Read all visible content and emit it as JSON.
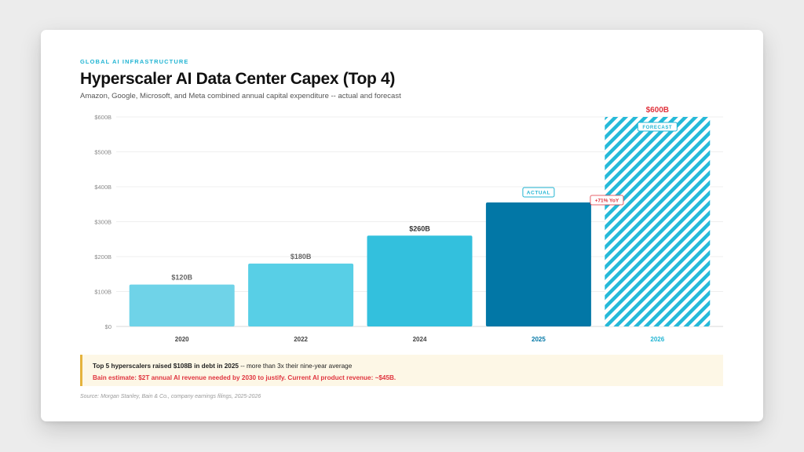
{
  "header": {
    "eyebrow": "GLOBAL AI INFRASTRUCTURE",
    "title": "Hyperscaler AI Data Center Capex (Top 4)",
    "subtitle": "Amazon, Google, Microsoft, and Meta combined annual capital expenditure -- actual and forecast"
  },
  "chart_data": {
    "type": "bar",
    "categories": [
      "2020",
      "2022",
      "2024",
      "2025",
      "2026"
    ],
    "values": [
      120,
      180,
      260,
      355,
      600
    ],
    "value_labels": [
      "$120B",
      "$180B",
      "$260B",
      "",
      "$600B"
    ],
    "y_ticks": [
      "$0",
      "$100B",
      "$200B",
      "$300B",
      "$400B",
      "$500B",
      "$600B"
    ],
    "ylim": [
      0,
      600
    ],
    "grid": true,
    "bar_styles": [
      "light",
      "light",
      "medium",
      "actual",
      "forecast"
    ],
    "colors": {
      "light1": "#6fd3e8",
      "light2": "#58cfe6",
      "medium": "#33c0dd",
      "actual": "#0277a6",
      "forecast": "#25b9d8",
      "highlight_text": "#e0353f"
    },
    "badges": {
      "actual": "ACTUAL",
      "forecast": "FORECAST",
      "yoy": "+71% YoY"
    }
  },
  "callout": {
    "line1_bold": "Top 5 hyperscalers raised $108B in debt in 2025",
    "line1_rest": " -- more than 3x their nine-year average",
    "line2": "Bain estimate: $2T annual AI revenue needed by 2030 to justify. Current AI product revenue: ~$45B."
  },
  "source": "Source: Morgan Stanley, Bain & Co., company earnings filings, 2025-2026"
}
